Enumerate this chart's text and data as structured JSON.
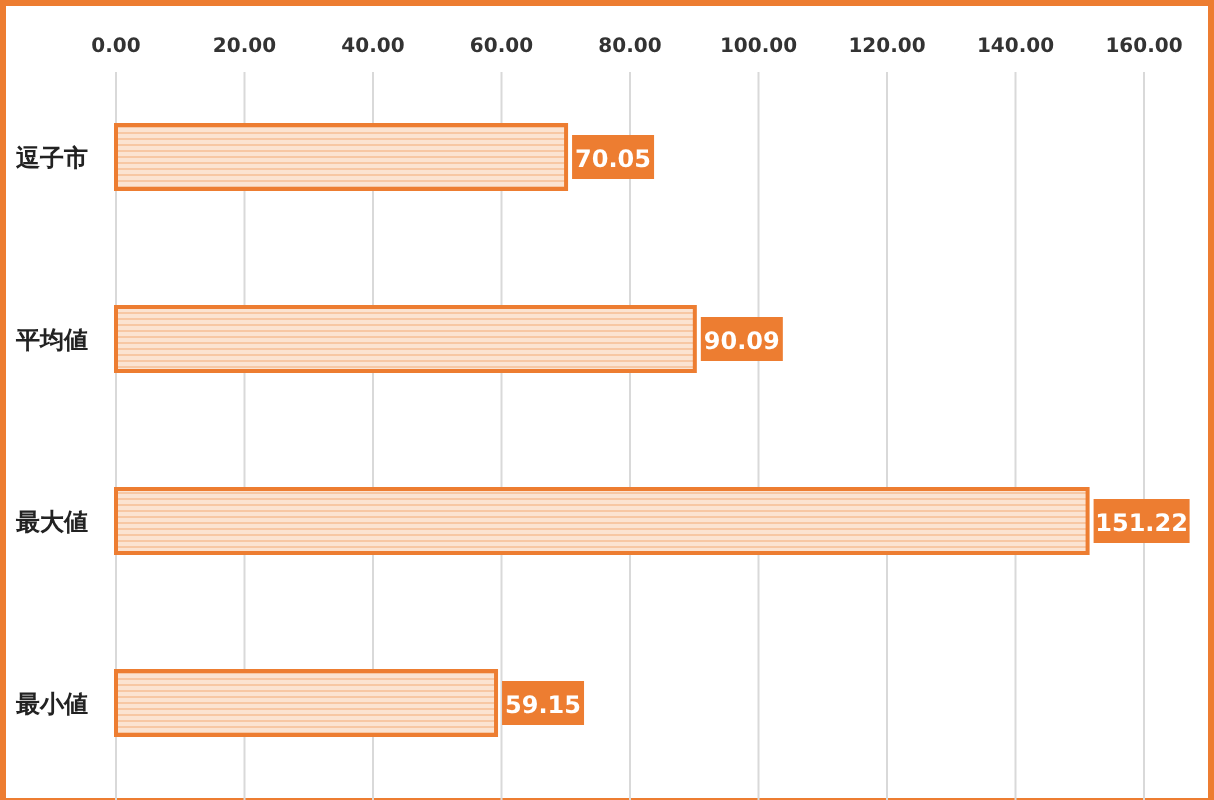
{
  "chart_data": {
    "type": "bar",
    "orientation": "horizontal",
    "categories": [
      "逗子市",
      "平均値",
      "最大値",
      "最小値"
    ],
    "values": [
      70.05,
      90.09,
      151.22,
      59.15
    ],
    "color": "#ed7d31",
    "xlim": [
      0,
      160
    ],
    "xticks": [
      {
        "value": 0,
        "label": "0.00"
      },
      {
        "value": 20,
        "label": "20.00"
      },
      {
        "value": 40,
        "label": "40.00"
      },
      {
        "value": 60,
        "label": "60.00"
      },
      {
        "value": 80,
        "label": "80.00"
      },
      {
        "value": 100,
        "label": "100.00"
      },
      {
        "value": 120,
        "label": "120.00"
      },
      {
        "value": 140,
        "label": "140.00"
      },
      {
        "value": 160,
        "label": "160.00"
      }
    ],
    "grid": "x",
    "data_labels": true
  }
}
